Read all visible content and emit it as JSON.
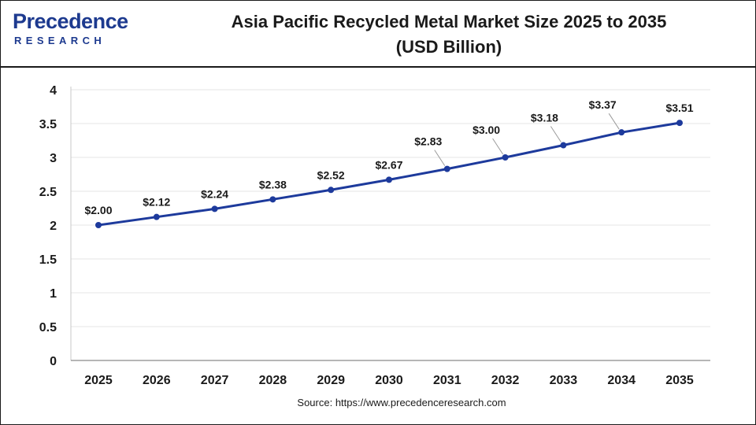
{
  "brand": {
    "name_main": "Precedence",
    "name_sub": "RESEARCH"
  },
  "title_line1": "Asia Pacific Recycled Metal Market Size 2025 to 2035",
  "title_line2": "(USD Billion)",
  "source": "Source: https://www.precedenceresearch.com",
  "colors": {
    "line": "#1d3a9c",
    "grid": "#e6e6e6",
    "brand": "#1d3a8f"
  },
  "chart_data": {
    "type": "line",
    "title": "Asia Pacific Recycled Metal Market Size 2025 to 2035 (USD Billion)",
    "xlabel": "",
    "ylabel": "",
    "categories": [
      "2025",
      "2026",
      "2027",
      "2028",
      "2029",
      "2030",
      "2031",
      "2032",
      "2033",
      "2034",
      "2035"
    ],
    "values": [
      2.0,
      2.12,
      2.24,
      2.38,
      2.52,
      2.67,
      2.83,
      3.0,
      3.18,
      3.37,
      3.51
    ],
    "data_labels": [
      "$2.00",
      "$2.12",
      "$2.24",
      "$2.38",
      "$2.52",
      "$2.67",
      "$2.83",
      "$3.00",
      "$3.18",
      "$3.37",
      "$3.51"
    ],
    "yticks": [
      "0",
      "0.5",
      "1",
      "1.5",
      "2",
      "2.5",
      "3",
      "3.5",
      "4"
    ],
    "ylim": [
      0,
      4
    ],
    "grid": true,
    "legend": "none"
  }
}
